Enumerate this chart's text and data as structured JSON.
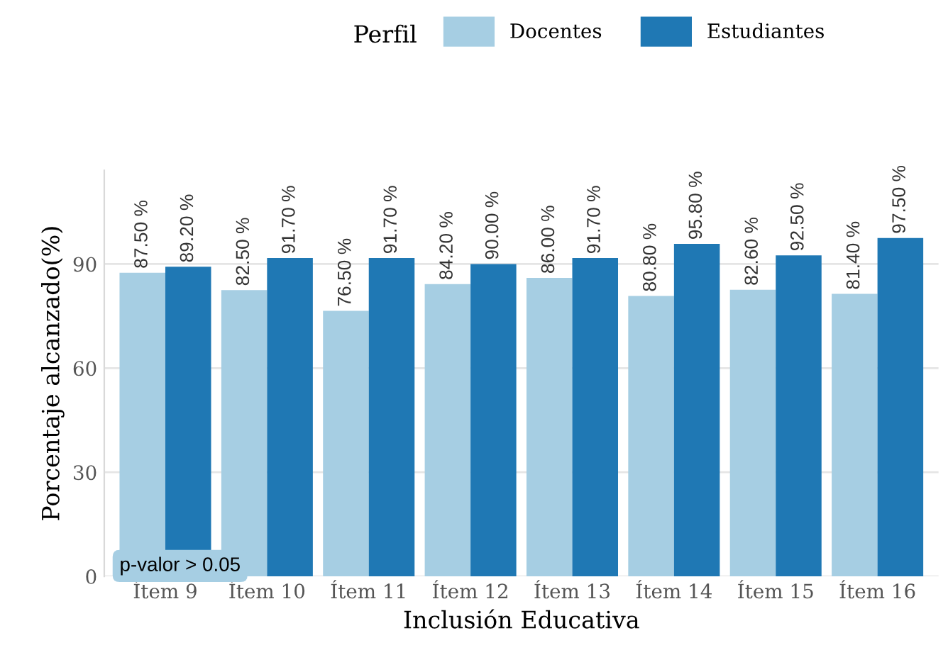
{
  "chart_data": {
    "type": "bar",
    "xlabel": "Inclusión Educativa",
    "ylabel": "Porcentaje alcanzado(%)",
    "legend_title": "Perfil",
    "legend": "top",
    "categories": [
      "Ítem 9",
      "Ítem 10",
      "Ítem 11",
      "Ítem 12",
      "Ítem 13",
      "Ítem 14",
      "Ítem 15",
      "Ítem 16"
    ],
    "series": [
      {
        "name": "Docentes",
        "color": "#a6cee3",
        "values": [
          87.5,
          82.5,
          76.5,
          84.2,
          86.0,
          80.8,
          82.6,
          81.4
        ],
        "value_labels": [
          "87.50 %",
          "82.50 %",
          "76.50 %",
          "84.20 %",
          "86.00 %",
          "80.80 %",
          "82.60 %",
          "81.40 %"
        ]
      },
      {
        "name": "Estudiantes",
        "color": "#1f78b4",
        "values": [
          89.2,
          91.7,
          91.7,
          90.0,
          91.7,
          95.8,
          92.5,
          97.5
        ],
        "value_labels": [
          "89.20 %",
          "91.70 %",
          "91.70 %",
          "90.00 %",
          "91.70 %",
          "95.80 %",
          "92.50 %",
          "97.50 %"
        ]
      }
    ],
    "ylim": [
      0,
      117
    ],
    "yticks": [
      0,
      30,
      60,
      90
    ],
    "grid": "y",
    "annotations": [
      "p-valor > 0.05"
    ]
  }
}
